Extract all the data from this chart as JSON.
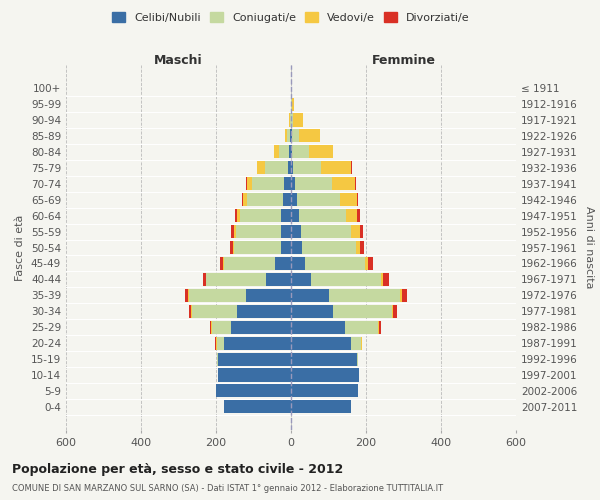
{
  "age_groups": [
    "0-4",
    "5-9",
    "10-14",
    "15-19",
    "20-24",
    "25-29",
    "30-34",
    "35-39",
    "40-44",
    "45-49",
    "50-54",
    "55-59",
    "60-64",
    "65-69",
    "70-74",
    "75-79",
    "80-84",
    "85-89",
    "90-94",
    "95-99",
    "100+"
  ],
  "birth_years": [
    "2007-2011",
    "2002-2006",
    "1997-2001",
    "1992-1996",
    "1987-1991",
    "1982-1986",
    "1977-1981",
    "1972-1976",
    "1967-1971",
    "1962-1966",
    "1957-1961",
    "1952-1956",
    "1947-1951",
    "1942-1946",
    "1937-1941",
    "1932-1936",
    "1927-1931",
    "1922-1926",
    "1917-1921",
    "1912-1916",
    "≤ 1911"
  ],
  "maschi": {
    "celibi": [
      180,
      200,
      195,
      195,
      180,
      160,
      145,
      120,
      68,
      42,
      28,
      28,
      26,
      22,
      18,
      8,
      5,
      2,
      1,
      0,
      0
    ],
    "coniugati": [
      0,
      0,
      0,
      3,
      18,
      52,
      120,
      152,
      158,
      138,
      125,
      120,
      110,
      95,
      85,
      62,
      28,
      8,
      2,
      0,
      0
    ],
    "vedovi": [
      0,
      0,
      0,
      0,
      2,
      2,
      2,
      2,
      2,
      2,
      3,
      5,
      8,
      10,
      15,
      20,
      12,
      5,
      2,
      0,
      0
    ],
    "divorziati": [
      0,
      0,
      0,
      0,
      2,
      3,
      5,
      8,
      8,
      8,
      8,
      7,
      6,
      4,
      3,
      2,
      0,
      0,
      0,
      0,
      0
    ]
  },
  "femmine": {
    "nubili": [
      160,
      178,
      180,
      175,
      160,
      145,
      112,
      102,
      52,
      36,
      28,
      26,
      22,
      15,
      10,
      5,
      3,
      2,
      1,
      0,
      0
    ],
    "coniugate": [
      0,
      0,
      0,
      4,
      26,
      88,
      158,
      188,
      188,
      162,
      145,
      135,
      125,
      115,
      100,
      75,
      45,
      20,
      5,
      2,
      0
    ],
    "vedove": [
      0,
      0,
      0,
      0,
      2,
      2,
      3,
      5,
      5,
      8,
      12,
      22,
      30,
      45,
      60,
      80,
      65,
      55,
      25,
      5,
      0
    ],
    "divorziate": [
      0,
      0,
      0,
      0,
      2,
      5,
      10,
      15,
      15,
      12,
      10,
      8,
      6,
      4,
      3,
      2,
      0,
      0,
      0,
      0,
      0
    ]
  },
  "colors": {
    "celibi_nubili": "#3a6ea5",
    "coniugati_e": "#c5d9a0",
    "vedovi_e": "#f5c842",
    "divorziati_e": "#d93025"
  },
  "xlim": [
    -600,
    600
  ],
  "xticks": [
    -600,
    -400,
    -200,
    0,
    200,
    400,
    600
  ],
  "xticklabels": [
    "600",
    "400",
    "200",
    "0",
    "200",
    "400",
    "600"
  ],
  "title": "Popolazione per età, sesso e stato civile - 2012",
  "subtitle": "COMUNE DI SAN MARZANO SUL SARNO (SA) - Dati ISTAT 1° gennaio 2012 - Elaborazione TUTTITALIA.IT",
  "ylabel_left": "Fasce di età",
  "ylabel_right": "Anni di nascita",
  "legend_labels": [
    "Celibi/Nubili",
    "Coniugati/e",
    "Vedovi/e",
    "Divorziati/e"
  ],
  "maschi_label": "Maschi",
  "femmine_label": "Femmine",
  "background_color": "#f5f5f0",
  "plot_bg": "#f5f5f0",
  "grid_color": "#cccccc"
}
